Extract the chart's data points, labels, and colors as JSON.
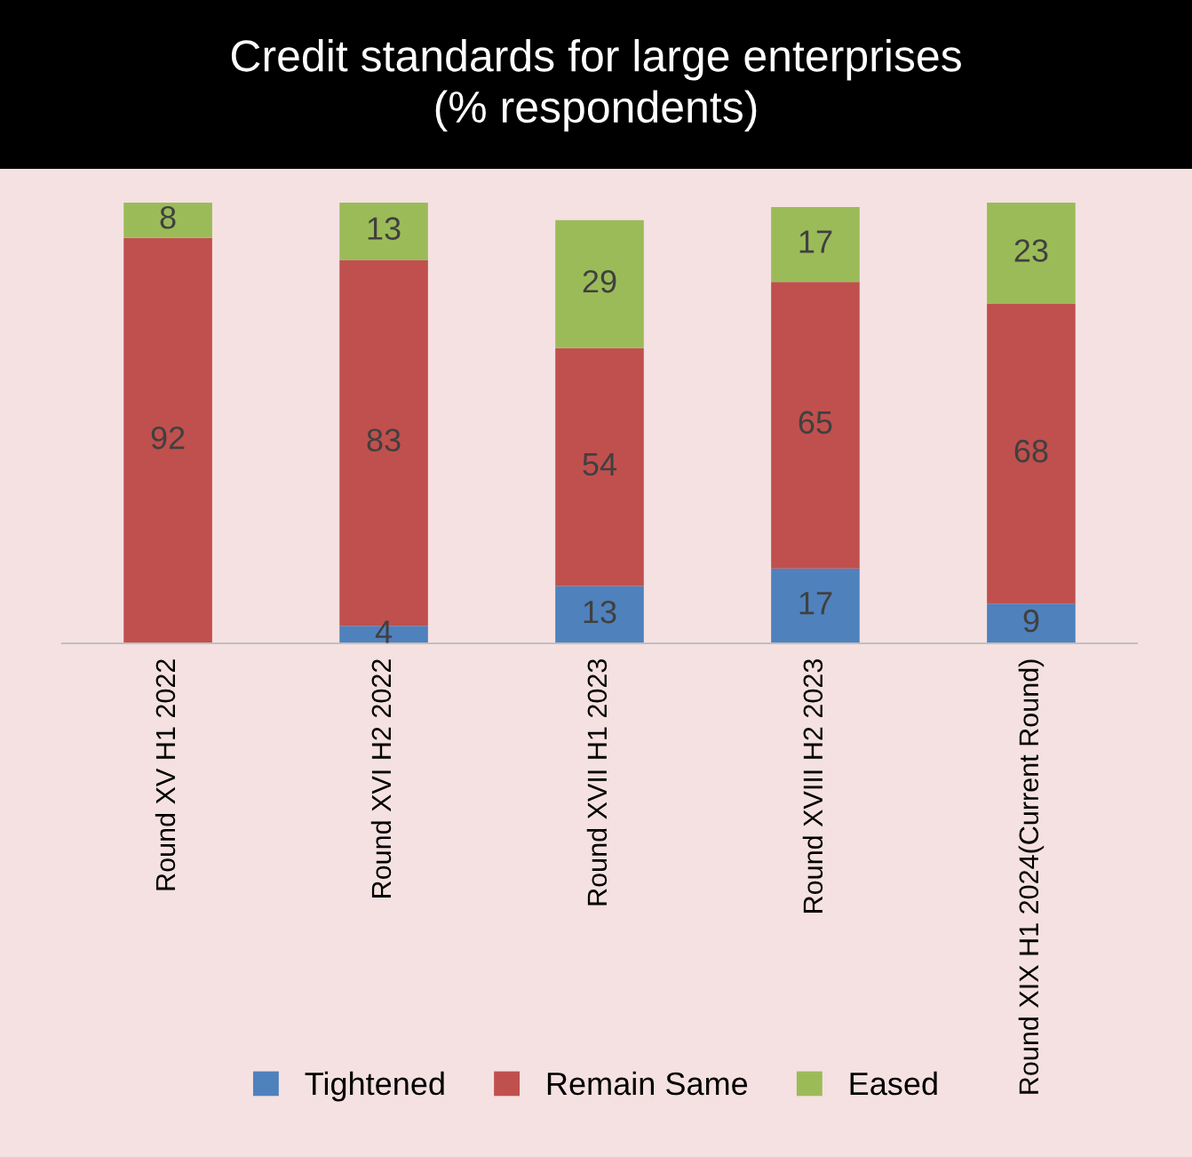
{
  "chart_data": {
    "type": "bar",
    "title": "Credit standards for large enterprises\n(% respondents)",
    "categories": [
      "Round XV H1 2022",
      "Round XVI H2 2022",
      "Round XVII H1 2023",
      "Round XVIII H2 2023",
      "Round XIX H1 2024(Current Round)"
    ],
    "stacked": true,
    "tick_labels": "x",
    "grid": false,
    "legend": "bottom",
    "series": [
      {
        "name": "Tightened",
        "color": "#4f81bd",
        "values": [
          0,
          4,
          13,
          17,
          9
        ],
        "value_labels": [
          null,
          "4",
          "13",
          "17",
          "9"
        ]
      },
      {
        "name": "Remain Same",
        "color": "#c0504d",
        "values": [
          92,
          83,
          54,
          65,
          68
        ],
        "value_labels": [
          "92",
          "83",
          "54",
          "65",
          "68"
        ]
      },
      {
        "name": "Eased",
        "color": "#9bbb59",
        "values": [
          8,
          13,
          29,
          17,
          23
        ],
        "value_labels": [
          "8",
          "13",
          "29",
          "17",
          "23"
        ]
      }
    ]
  }
}
